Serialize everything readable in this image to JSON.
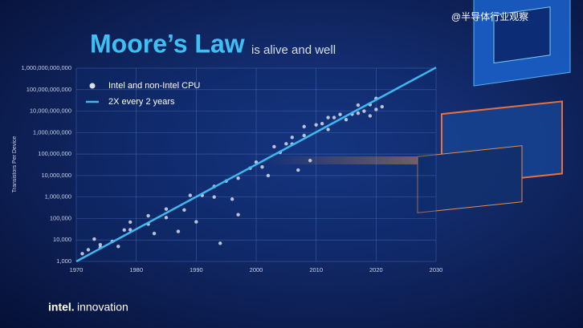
{
  "chart_data": {
    "type": "scatter",
    "title": "Moore’s Law",
    "subtitle": "is alive and well",
    "y_label": "Transistors Per Device",
    "log_scale": true,
    "grid": true,
    "legend": "top-left",
    "xlim": [
      1970,
      2030
    ],
    "ylim": [
      1000,
      1000000000000
    ],
    "xticks": [
      1970,
      1980,
      1990,
      2000,
      2010,
      2020,
      2030
    ],
    "yticks": [
      {
        "value": 1000,
        "label": "1,000"
      },
      {
        "value": 10000,
        "label": "10,000"
      },
      {
        "value": 100000,
        "label": "100,000"
      },
      {
        "value": 1000000,
        "label": "1,000,000"
      },
      {
        "value": 10000000,
        "label": "10,000,000"
      },
      {
        "value": 100000000,
        "label": "100,000,000"
      },
      {
        "value": 1000000000,
        "label": "1,000,000,000"
      },
      {
        "value": 10000000000,
        "label": "10,000,000,000"
      },
      {
        "value": 100000000000,
        "label": "100,000,000,000"
      },
      {
        "value": 1000000000000,
        "label": "1,000,000,000,000"
      }
    ],
    "series": [
      {
        "name": "Intel and non-Intel CPU",
        "type": "scatter",
        "color": "#d8dde8",
        "x": [
          1971,
          1972,
          1973,
          1974,
          1974,
          1976,
          1977,
          1978,
          1979,
          1979,
          1982,
          1982,
          1983,
          1985,
          1985,
          1987,
          1988,
          1989,
          1990,
          1991,
          1993,
          1993,
          1994,
          1995,
          1996,
          1997,
          1997,
          1999,
          2000,
          2001,
          2002,
          2003,
          2004,
          2005,
          2006,
          2006,
          2007,
          2008,
          2008,
          2009,
          2010,
          2011,
          2012,
          2012,
          2013,
          2014,
          2015,
          2016,
          2017,
          2017,
          2018,
          2019,
          2019,
          2020,
          2020,
          2021
        ],
        "values": [
          2300,
          3500,
          11000,
          4500,
          6000,
          8500,
          5000,
          29000,
          68000,
          30000,
          134000,
          55000,
          20000,
          275000,
          110000,
          25000,
          250000,
          1200000,
          70000,
          1200000,
          3100000,
          1000000,
          7000,
          5500000,
          800000,
          7500000,
          150000,
          22000000,
          42000000,
          25000000,
          10000000,
          220000000,
          120000000,
          300000000,
          290000000,
          600000000,
          18000000,
          730000000,
          1900000000,
          50000000,
          2300000000,
          2600000000,
          5000000000,
          1400000000,
          5000000000,
          7000000000,
          4000000000,
          7200000000,
          19000000000,
          8000000000,
          10000000000,
          20000000000,
          6000000000,
          39000000000,
          12000000000,
          16000000000
        ]
      },
      {
        "name": "2X every 2 years",
        "type": "line",
        "color": "#3fb8f0",
        "x": [
          1970,
          2030
        ],
        "values": [
          1000,
          1073741824000
        ]
      }
    ]
  },
  "watermark": "@半导体行业观察",
  "footer": {
    "brand": "intel.",
    "event": "innovation"
  }
}
